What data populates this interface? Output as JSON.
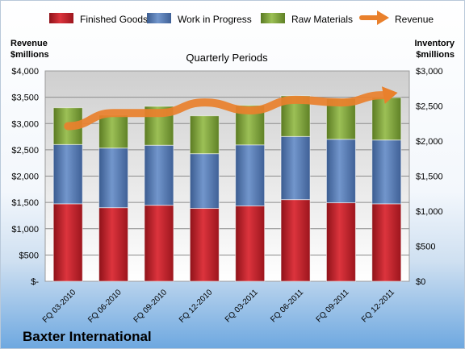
{
  "chart_data": {
    "type": "bar",
    "subtitle": "Quarterly Periods",
    "company": "Baxter International",
    "left_axis": {
      "title_line1": "Revenue",
      "title_line2": "$millions",
      "ylim": [
        0,
        4000
      ],
      "ticks": [
        "$-",
        "$500",
        "$1,000",
        "$1,500",
        "$2,000",
        "$2,500",
        "$3,000",
        "$3,500",
        "$4,000"
      ]
    },
    "right_axis": {
      "title_line1": "Inventory",
      "title_line2": "$millions",
      "ylim": [
        0,
        3000
      ],
      "ticks": [
        "$0",
        "$500",
        "$1,000",
        "$1,500",
        "$2,000",
        "$2,500",
        "$3,000"
      ]
    },
    "categories": [
      "FQ 03-2010",
      "FQ 06-2010",
      "FQ 09-2010",
      "FQ 12-2010",
      "FQ 03-2011",
      "FQ 06-2011",
      "FQ 09-2011",
      "FQ 12-2011"
    ],
    "series": [
      {
        "name": "Finished Goods",
        "axis": "right",
        "stacked": true,
        "color": "#c0212b",
        "values": [
          1105,
          1050,
          1085,
          1040,
          1075,
          1165,
          1120,
          1105
        ]
      },
      {
        "name": "Work in Progress",
        "axis": "right",
        "stacked": true,
        "color": "#5478b3",
        "values": [
          845,
          850,
          855,
          780,
          870,
          900,
          905,
          910
        ]
      },
      {
        "name": "Raw Materials",
        "axis": "right",
        "stacked": true,
        "color": "#7ea33a",
        "values": [
          525,
          470,
          555,
          540,
          565,
          580,
          580,
          605
        ]
      },
      {
        "name": "Revenue",
        "type": "line",
        "axis": "left",
        "color": "#e9802c",
        "values": [
          2950,
          3200,
          3200,
          3400,
          3250,
          3450,
          3400,
          3550
        ]
      }
    ],
    "grid": true,
    "legend": "top"
  }
}
